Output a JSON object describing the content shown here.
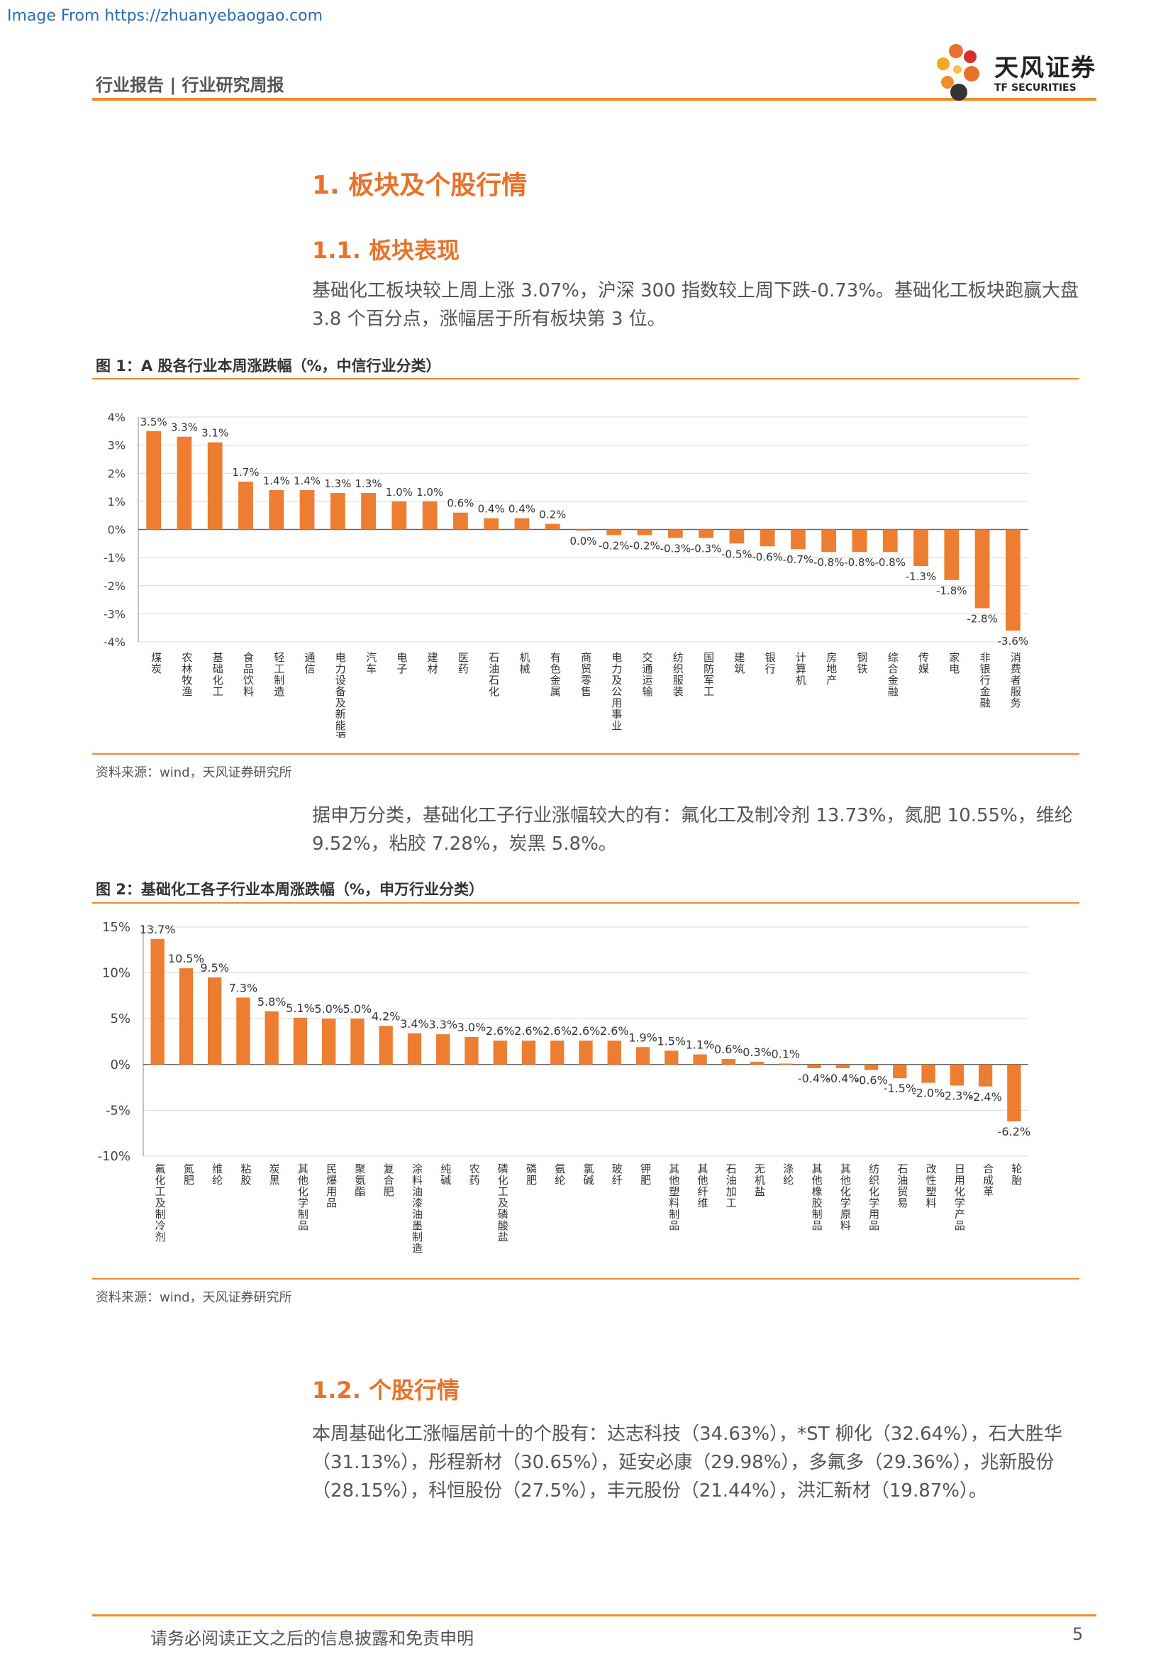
{
  "watermark": "Image From https://zhuanyebaogao.com",
  "header": {
    "doc_type": "行业报告 | 行业研究周报",
    "logo_cn": "天风证券",
    "logo_en": "TF SECURITIES"
  },
  "section1_title": "1. 板块及个股行情",
  "section11_title": "1.1. 板块表现",
  "para1": "基础化工板块较上周上涨 3.07%，沪深 300 指数较上周下跌-0.73%。基础化工板块跑赢大盘 3.8 个百分点，涨幅居于所有板块第 3 位。",
  "fig1": {
    "title": "图 1：A 股各行业本周涨跌幅（%，中信行业分类）",
    "source": "资料来源：wind，天风证券研究所"
  },
  "para2": "据申万分类，基础化工子行业涨幅较大的有：氟化工及制冷剂 13.73%，氮肥 10.55%，维纶 9.52%，粘胶 7.28%，炭黑 5.8%。",
  "fig2": {
    "title": "图 2：基础化工各子行业本周涨跌幅（%，申万行业分类）",
    "source": "资料来源：wind，天风证券研究所"
  },
  "section12_title": "1.2. 个股行情",
  "para3": "本周基础化工涨幅居前十的个股有：达志科技（34.63%），*ST 柳化（32.64%），石大胜华（31.13%），彤程新材（30.65%），延安必康（29.98%），多氟多（29.36%），兆新股份（28.15%），科恒股份（27.5%），丰元股份（21.44%），洪汇新材（19.87%）。",
  "footer": {
    "disclaimer": "请务必阅读正文之后的信息披露和免责申明",
    "page": "5"
  },
  "colors": {
    "accent": "#f08c2e",
    "bar": "#ed7d31"
  },
  "chart_data": [
    {
      "type": "bar",
      "title": "图 1：A 股各行业本周涨跌幅（%，中信行业分类）",
      "categories": [
        "煤炭",
        "农林牧渔",
        "基础化工",
        "食品饮料",
        "轻工制造",
        "通信",
        "电力设备及新能源",
        "汽车",
        "电子",
        "建材",
        "医药",
        "石油石化",
        "机械",
        "有色金属",
        "商贸零售",
        "电力及公用事业",
        "交通运输",
        "纺织服装",
        "国防军工",
        "建筑",
        "银行",
        "计算机",
        "房地产",
        "钢铁",
        "综合金融",
        "传媒",
        "家电",
        "非银行金融",
        "消费者服务"
      ],
      "values": [
        3.5,
        3.3,
        3.1,
        1.7,
        1.4,
        1.4,
        1.3,
        1.3,
        1.0,
        1.0,
        0.6,
        0.4,
        0.4,
        0.2,
        -0.04,
        -0.2,
        -0.2,
        -0.3,
        -0.3,
        -0.5,
        -0.6,
        -0.7,
        -0.8,
        -0.8,
        -0.8,
        -1.3,
        -1.8,
        -2.8,
        -3.6
      ],
      "labels": [
        "3.5%",
        "3.3%",
        "3.1%",
        "1.7%",
        "1.4%",
        "1.4%",
        "1.3%",
        "1.3%",
        "1.0%",
        "1.0%",
        "0.6%",
        "0.4%",
        "0.4%",
        "0.2%",
        "0.0%",
        "-0.2%",
        "-0.2%",
        "-0.3%",
        "-0.3%",
        "-0.5%",
        "-0.6%",
        "-0.7%",
        "-0.8%",
        "-0.8%",
        "-0.8%",
        "-1.3%",
        "-1.8%",
        "-2.8%",
        "-3.6%"
      ],
      "yticks": [
        "4%",
        "3%",
        "2%",
        "1%",
        "0%",
        "-1%",
        "-2%",
        "-3%",
        "-4%"
      ],
      "ylim": [
        -4,
        4
      ]
    },
    {
      "type": "bar",
      "title": "图 2：基础化工各子行业本周涨跌幅（%，申万行业分类）",
      "categories": [
        "氟化工及制冷剂",
        "氮肥",
        "维纶",
        "粘胶",
        "炭黑",
        "其他化学制品",
        "民爆用品",
        "聚氨酯",
        "复合肥",
        "涂料油漆油墨制造",
        "纯碱",
        "农药",
        "磷化工及磷酸盐",
        "磷肥",
        "氨纶",
        "氯碱",
        "玻纤",
        "钾肥",
        "其他塑料制品",
        "其他纤维",
        "石油加工",
        "无机盐",
        "涤纶",
        "其他橡胶制品",
        "其他化学原料",
        "纺织化学用品",
        "石油贸易",
        "改性塑料",
        "日用化学产品",
        "合成革",
        "轮胎"
      ],
      "values": [
        13.7,
        10.5,
        9.5,
        7.3,
        5.8,
        5.1,
        5.0,
        5.0,
        4.2,
        3.4,
        3.3,
        3.0,
        2.6,
        2.6,
        2.6,
        2.6,
        2.6,
        1.9,
        1.5,
        1.1,
        0.6,
        0.3,
        0.1,
        -0.4,
        -0.4,
        -0.6,
        -1.5,
        -2.0,
        -2.3,
        -2.4,
        -6.2
      ],
      "labels": [
        "13.7%",
        "10.5%",
        "9.5%",
        "7.3%",
        "5.8%",
        "5.1%",
        "5.0%",
        "5.0%",
        "4.2%",
        "3.4%",
        "3.3%",
        "3.0%",
        "2.6%",
        "2.6%",
        "2.6%",
        "2.6%",
        "2.6%",
        "1.9%",
        "1.5%",
        "1.1%",
        "0.6%",
        "0.3%",
        "0.1%",
        "-0.4%",
        "-0.4%",
        "-0.6%",
        "-1.5%",
        "-2.0%",
        "-2.3%",
        "-2.4%",
        "-6.2%"
      ],
      "yticks": [
        "15%",
        "10%",
        "5%",
        "0%",
        "-5%",
        "-10%"
      ],
      "ylim": [
        -10,
        15
      ]
    }
  ]
}
